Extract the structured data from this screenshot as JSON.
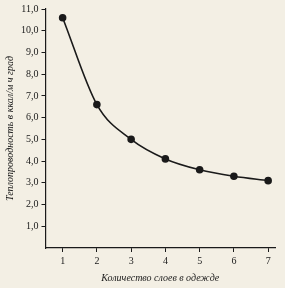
{
  "chart_data": {
    "type": "line",
    "x_label": "Количество слоев в одежде",
    "y_label": "Теплопроводность в ккал/м ч град",
    "x": [
      1,
      2,
      3,
      4,
      5,
      6,
      7
    ],
    "values": [
      10.6,
      6.6,
      5.0,
      4.1,
      3.6,
      3.3,
      3.1
    ],
    "color": "#1a1a1a",
    "marker": "circle",
    "line_style": "solid",
    "xlim": [
      0.5,
      7.2
    ],
    "xticks": [
      1,
      2,
      3,
      4,
      5,
      6,
      7
    ],
    "ylim": [
      0,
      11
    ],
    "yticks": [
      {
        "value": 1,
        "label": "1,0"
      },
      {
        "value": 2,
        "label": "2,0"
      },
      {
        "value": 3,
        "label": "3,0"
      },
      {
        "value": 4,
        "label": "4,0"
      },
      {
        "value": 5,
        "label": "5,0"
      },
      {
        "value": 6,
        "label": "6,0"
      },
      {
        "value": 7,
        "label": "7,0"
      },
      {
        "value": 8,
        "label": "8,0"
      },
      {
        "value": 9,
        "label": "9,0"
      },
      {
        "value": 10,
        "label": "10,0"
      },
      {
        "value": 11,
        "label": "11,0"
      }
    ],
    "grid": false
  }
}
